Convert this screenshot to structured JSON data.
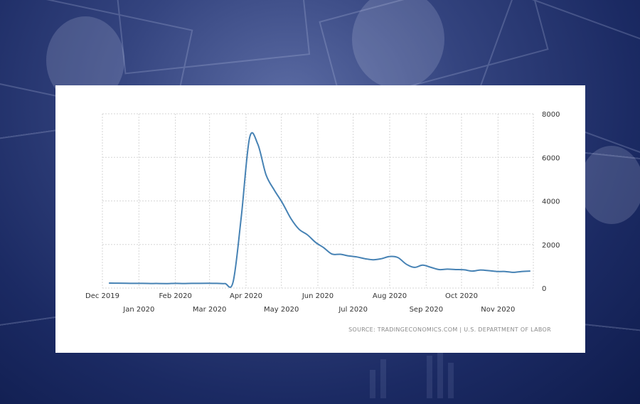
{
  "chart_data": {
    "type": "line",
    "x_ticks_row1": [
      "Dec 2019",
      "Feb 2020",
      "Apr 2020",
      "Jun 2020",
      "Aug 2020",
      "Oct 2020"
    ],
    "x_ticks_row2": [
      "Jan 2020",
      "Mar 2020",
      "May 2020",
      "Jul 2020",
      "Sep 2020",
      "Nov 2020"
    ],
    "y_ticks": [
      "0",
      "2000",
      "4000",
      "6000",
      "8000"
    ],
    "ylim": [
      0,
      8000
    ],
    "grid": true,
    "y_axis_side": "right",
    "line_color": "#4682b4",
    "x": [
      "2019-12-07",
      "2019-12-14",
      "2019-12-21",
      "2019-12-28",
      "2020-01-04",
      "2020-01-11",
      "2020-01-18",
      "2020-01-25",
      "2020-02-01",
      "2020-02-08",
      "2020-02-15",
      "2020-02-22",
      "2020-02-29",
      "2020-03-07",
      "2020-03-14",
      "2020-03-21",
      "2020-03-28",
      "2020-04-04",
      "2020-04-11",
      "2020-04-18",
      "2020-04-25",
      "2020-05-02",
      "2020-05-09",
      "2020-05-16",
      "2020-05-23",
      "2020-05-30",
      "2020-06-06",
      "2020-06-13",
      "2020-06-20",
      "2020-06-27",
      "2020-07-04",
      "2020-07-11",
      "2020-07-18",
      "2020-07-25",
      "2020-08-01",
      "2020-08-08",
      "2020-08-15",
      "2020-08-22",
      "2020-08-29",
      "2020-09-05",
      "2020-09-12",
      "2020-09-19",
      "2020-09-26",
      "2020-10-03",
      "2020-10-10",
      "2020-10-17",
      "2020-10-24",
      "2020-10-31",
      "2020-11-07",
      "2020-11-14",
      "2020-11-21",
      "2020-11-28"
    ],
    "values": [
      230,
      225,
      220,
      215,
      215,
      210,
      210,
      205,
      215,
      210,
      215,
      215,
      220,
      215,
      210,
      280,
      3300,
      6900,
      6600,
      5200,
      4500,
      3900,
      3200,
      2700,
      2450,
      2100,
      1850,
      1560,
      1550,
      1480,
      1430,
      1350,
      1300,
      1350,
      1450,
      1400,
      1100,
      950,
      1050,
      950,
      850,
      870,
      850,
      840,
      780,
      830,
      800,
      760,
      760,
      720,
      760,
      780
    ]
  },
  "source": "SOURCE: TRADINGECONOMICS.COM  |  U.S. DEPARTMENT OF LABOR"
}
